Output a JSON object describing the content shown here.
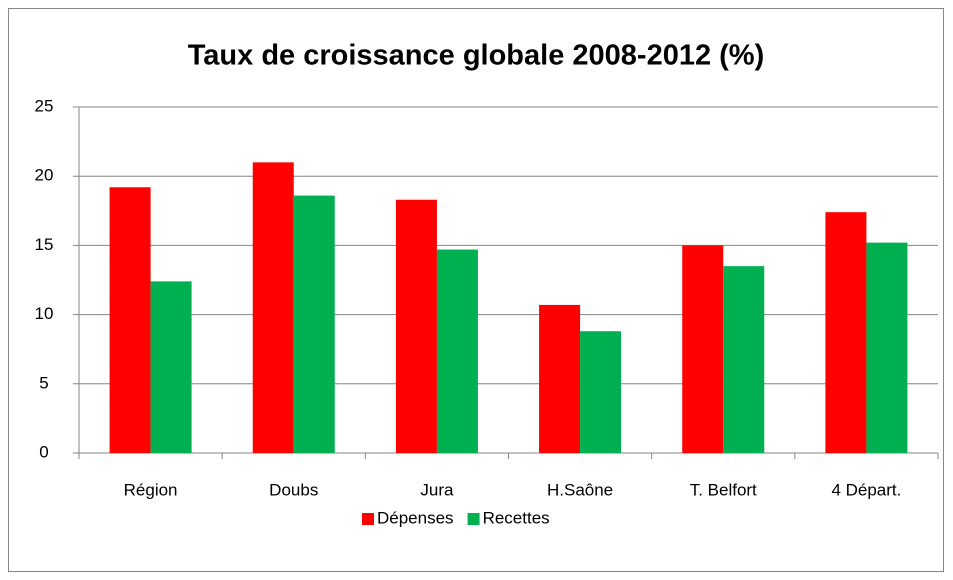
{
  "chart_data": {
    "type": "bar",
    "title": "Taux de croissance globale 2008-2012 (%)",
    "categories": [
      "Région",
      "Doubs",
      "Jura",
      "H.Saône",
      "T. Belfort",
      "4 Départ."
    ],
    "series": [
      {
        "name": "Dépenses",
        "color": "#ff0000",
        "values": [
          19.2,
          21.0,
          18.3,
          10.7,
          15.0,
          17.4
        ]
      },
      {
        "name": "Recettes",
        "color": "#00b050",
        "values": [
          12.4,
          18.6,
          14.7,
          8.8,
          13.5,
          15.2
        ]
      }
    ],
    "ylim": [
      0,
      25
    ],
    "yticks": [
      0,
      5,
      10,
      15,
      20,
      25
    ],
    "grid": true,
    "legend": "bottom"
  }
}
